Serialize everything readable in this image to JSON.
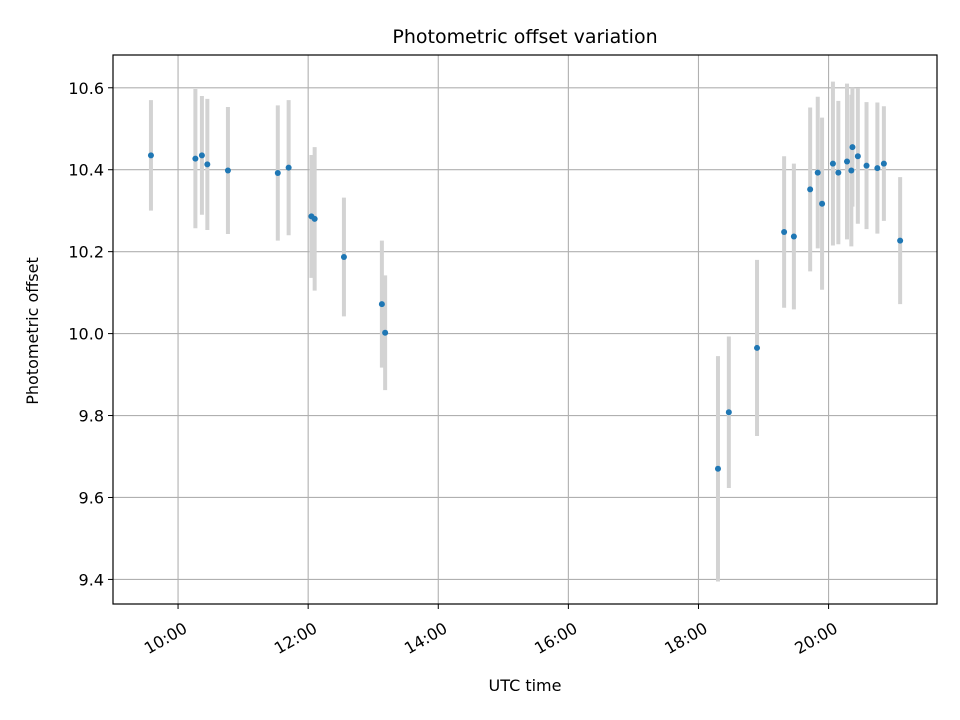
{
  "chart_data": {
    "type": "scatter",
    "title": "Photometric offset variation",
    "xlabel": "UTC time",
    "ylabel": "Photometric offset",
    "xlim": [
      "09:00",
      "21:40"
    ],
    "ylim": [
      9.34,
      10.68
    ],
    "x_ticks": [
      "10:00",
      "12:00",
      "14:00",
      "16:00",
      "18:00",
      "20:00"
    ],
    "y_ticks": [
      "9.4",
      "9.6",
      "9.8",
      "10.0",
      "10.2",
      "10.4",
      "10.6"
    ],
    "grid": true,
    "legend": "none",
    "colors": {
      "point": "#1f77b4",
      "errorbar": "#d3d3d3",
      "grid": "#b0b0b0"
    },
    "points": [
      {
        "x": "09:35",
        "y": 10.435,
        "err": 0.135
      },
      {
        "x": "10:16",
        "y": 10.427,
        "err": 0.17
      },
      {
        "x": "10:22",
        "y": 10.435,
        "err": 0.145
      },
      {
        "x": "10:27",
        "y": 10.413,
        "err": 0.16
      },
      {
        "x": "10:46",
        "y": 10.398,
        "err": 0.155
      },
      {
        "x": "11:32",
        "y": 10.392,
        "err": 0.165
      },
      {
        "x": "11:42",
        "y": 10.405,
        "err": 0.165
      },
      {
        "x": "12:03",
        "y": 10.286,
        "err": 0.15
      },
      {
        "x": "12:06",
        "y": 10.28,
        "err": 0.175
      },
      {
        "x": "12:33",
        "y": 10.187,
        "err": 0.145
      },
      {
        "x": "13:08",
        "y": 10.072,
        "err": 0.155
      },
      {
        "x": "13:11",
        "y": 10.002,
        "err": 0.14
      },
      {
        "x": "18:18",
        "y": 9.67,
        "err": 0.275
      },
      {
        "x": "18:28",
        "y": 9.808,
        "err": 0.185
      },
      {
        "x": "18:54",
        "y": 9.965,
        "err": 0.215
      },
      {
        "x": "19:19",
        "y": 10.248,
        "err": 0.185
      },
      {
        "x": "19:28",
        "y": 10.237,
        "err": 0.178
      },
      {
        "x": "19:43",
        "y": 10.352,
        "err": 0.2
      },
      {
        "x": "19:50",
        "y": 10.393,
        "err": 0.185
      },
      {
        "x": "19:54",
        "y": 10.317,
        "err": 0.21
      },
      {
        "x": "20:04",
        "y": 10.415,
        "err": 0.2
      },
      {
        "x": "20:09",
        "y": 10.393,
        "err": 0.175
      },
      {
        "x": "20:17",
        "y": 10.42,
        "err": 0.19
      },
      {
        "x": "20:21",
        "y": 10.398,
        "err": 0.185
      },
      {
        "x": "20:22",
        "y": 10.455,
        "err": 0.145
      },
      {
        "x": "20:27",
        "y": 10.433,
        "err": 0.165
      },
      {
        "x": "20:35",
        "y": 10.41,
        "err": 0.155
      },
      {
        "x": "20:45",
        "y": 10.404,
        "err": 0.16
      },
      {
        "x": "20:51",
        "y": 10.415,
        "err": 0.14
      },
      {
        "x": "21:06",
        "y": 10.227,
        "err": 0.155
      }
    ]
  }
}
